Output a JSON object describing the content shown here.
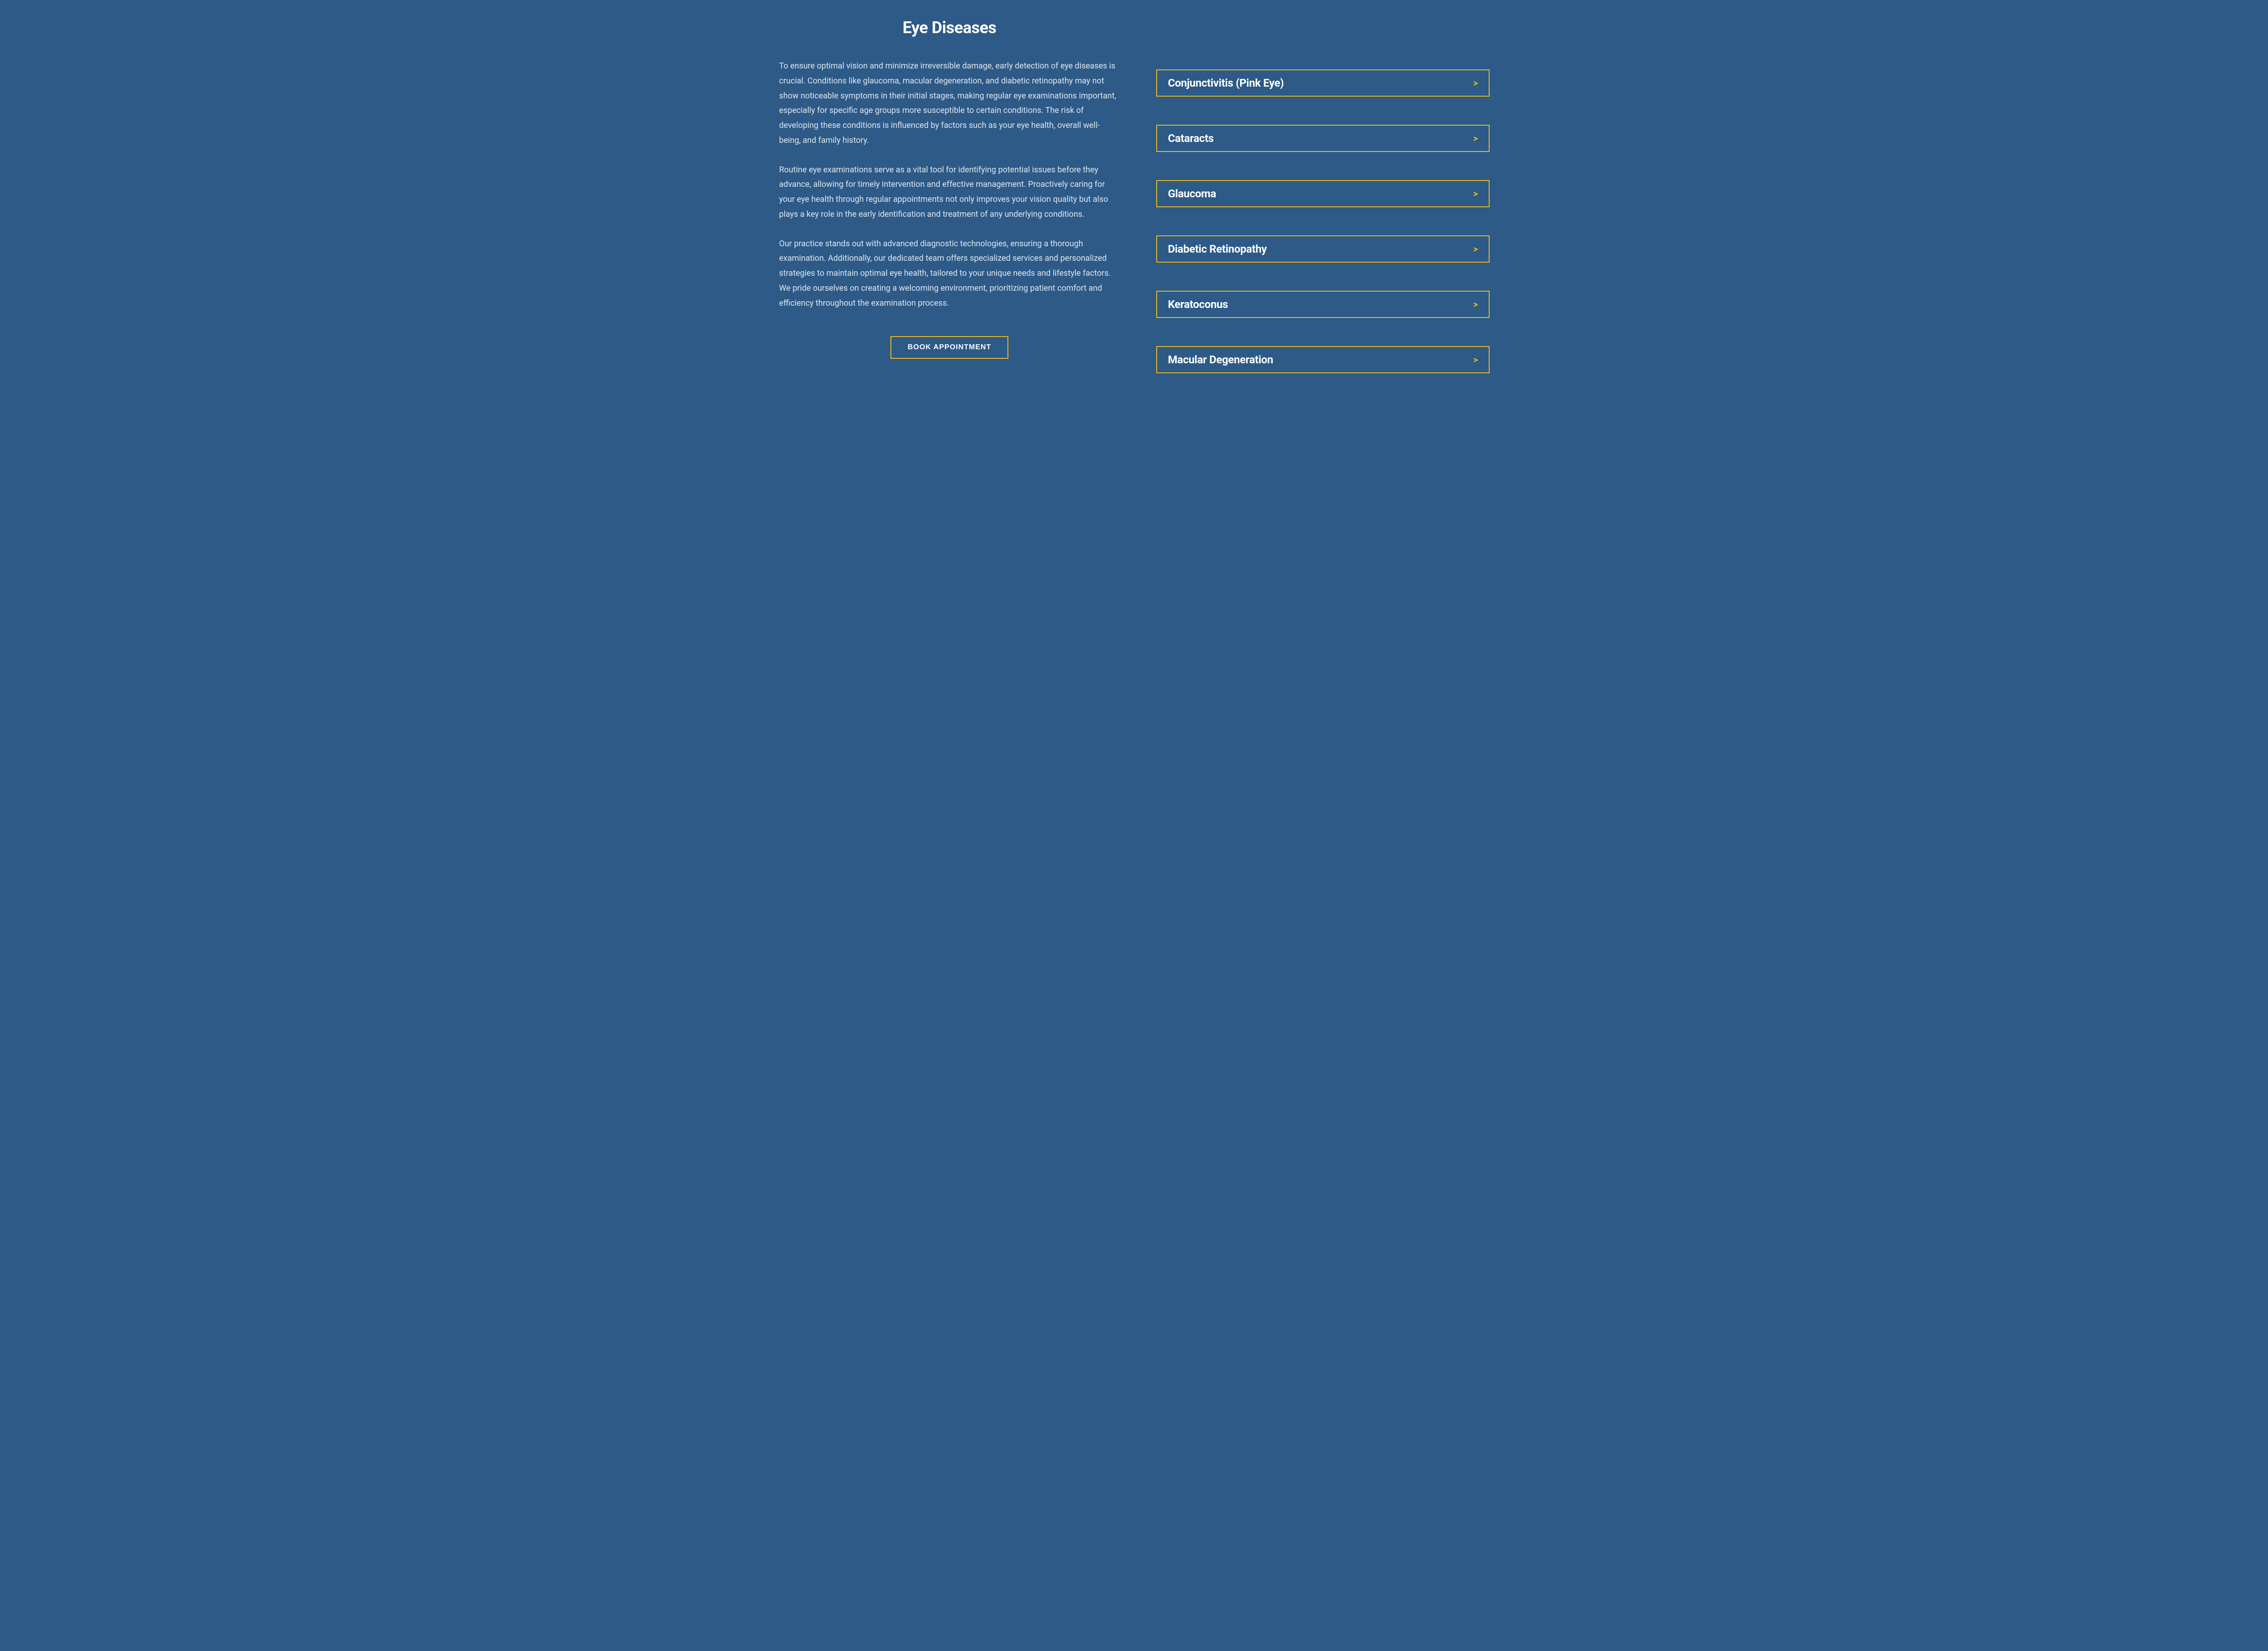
{
  "colors": {
    "background": "#2d5a87",
    "text": "#dde7f0",
    "heading": "#ffffff",
    "accent_border": "#e8b923",
    "arrow": "#e8b923"
  },
  "typography": {
    "title_fontsize": 36,
    "body_fontsize": 18,
    "accordion_fontsize": 24,
    "button_fontsize": 16
  },
  "left": {
    "title": "Eye Diseases",
    "paragraphs": [
      "To ensure optimal vision and minimize irreversible damage, early detection of eye diseases is crucial. Conditions like glaucoma, macular degeneration, and diabetic retinopathy may not show noticeable symptoms in their initial stages, making regular eye examinations important, especially for specific age groups more susceptible to certain conditions. The risk of developing these conditions is influenced by factors such as your eye health, overall well-being, and family history.",
      "Routine eye examinations serve as a vital tool for identifying potential issues before they advance, allowing for timely intervention and effective management. Proactively caring for your eye health through regular appointments not only improves your vision quality but also plays a key role in the early identification and treatment of any underlying conditions.",
      "Our practice stands out with advanced diagnostic technologies, ensuring a thorough examination. Additionally, our dedicated team offers specialized services and personalized strategies to maintain optimal eye health, tailored to your unique needs and lifestyle factors. We pride ourselves on creating a welcoming environment, prioritizing patient comfort and efficiency throughout the examination process."
    ],
    "cta_label": "BOOK APPOINTMENT"
  },
  "accordion": {
    "arrow_glyph": ">",
    "items": [
      {
        "title": "Conjunctivitis (Pink Eye)"
      },
      {
        "title": "Cataracts"
      },
      {
        "title": "Glaucoma"
      },
      {
        "title": "Diabetic Retinopathy"
      },
      {
        "title": "Keratoconus"
      },
      {
        "title": "Macular Degeneration"
      }
    ]
  }
}
